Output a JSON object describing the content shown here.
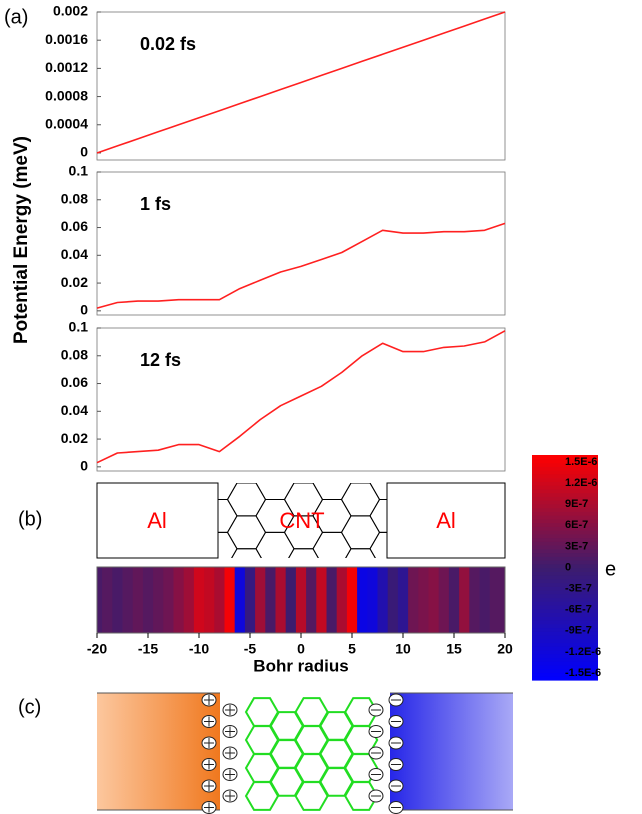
{
  "figure_labels": [
    "(a)",
    "(b)",
    "(c)"
  ],
  "ylabel": "Potential Energy (meV)",
  "chart_data": [
    {
      "type": "line",
      "annotation": "0.02 fs",
      "x": [
        -20,
        -18,
        -16,
        -14,
        -12,
        -10,
        -8,
        -6,
        -4,
        -2,
        0,
        2,
        4,
        6,
        8,
        10,
        12,
        14,
        16,
        18,
        20
      ],
      "series": [
        {
          "color": "#ff2020",
          "values": [
            0,
            0.0001,
            0.0002,
            0.0003,
            0.0004,
            0.0005,
            0.0006,
            0.0007,
            0.0008,
            0.0009,
            0.001,
            0.0011,
            0.0012,
            0.0013,
            0.0014,
            0.0015,
            0.0016,
            0.0017,
            0.0018,
            0.0019,
            0.002
          ]
        }
      ],
      "xlim": [
        -20,
        20
      ],
      "ylim": [
        -0.0001,
        0.002
      ],
      "yticks": [
        0,
        0.0004,
        0.0008,
        0.0012,
        0.0016,
        0.002
      ]
    },
    {
      "type": "line",
      "annotation": "1 fs",
      "x": [
        -20,
        -18,
        -16,
        -14,
        -12,
        -10,
        -8,
        -6,
        -4,
        -2,
        0,
        2,
        4,
        6,
        8,
        10,
        12,
        14,
        16,
        18,
        20
      ],
      "series": [
        {
          "color": "#ff2020",
          "values": [
            0.002,
            0.006,
            0.007,
            0.007,
            0.008,
            0.008,
            0.008,
            0.016,
            0.022,
            0.028,
            0.032,
            0.037,
            0.042,
            0.05,
            0.058,
            0.056,
            0.056,
            0.057,
            0.057,
            0.058,
            0.063
          ]
        }
      ],
      "xlim": [
        -20,
        20
      ],
      "ylim": [
        -0.003,
        0.1
      ],
      "yticks": [
        0,
        0.02,
        0.04,
        0.06,
        0.08,
        0.1
      ]
    },
    {
      "type": "line",
      "annotation": "12 fs",
      "x": [
        -20,
        -18,
        -16,
        -14,
        -12,
        -10,
        -8,
        -6,
        -4,
        -2,
        0,
        2,
        4,
        6,
        8,
        10,
        12,
        14,
        16,
        18,
        20
      ],
      "series": [
        {
          "color": "#ff2020",
          "values": [
            0.003,
            0.01,
            0.011,
            0.012,
            0.016,
            0.016,
            0.011,
            0.022,
            0.034,
            0.044,
            0.051,
            0.058,
            0.068,
            0.08,
            0.089,
            0.083,
            0.083,
            0.086,
            0.087,
            0.09,
            0.098
          ]
        }
      ],
      "xlim": [
        -20,
        20
      ],
      "ylim": [
        -0.003,
        0.1
      ],
      "yticks": [
        0,
        0.02,
        0.04,
        0.06,
        0.08,
        0.1
      ]
    },
    {
      "type": "heatmap",
      "annotations": [
        "Al",
        "CNT",
        "Al"
      ],
      "x": [
        -20,
        -19,
        -18,
        -17,
        -16,
        -15,
        -14,
        -13,
        -12,
        -11,
        -10,
        -9,
        -8,
        -7,
        -6,
        -5,
        -4,
        -3,
        -2,
        -1,
        0,
        1,
        2,
        3,
        4,
        5,
        6,
        7,
        8,
        9,
        10,
        11,
        12,
        13,
        14,
        15,
        16,
        17,
        18,
        19,
        20
      ],
      "values": [
        1e-07,
        2e-07,
        1e-07,
        2e-07,
        3e-07,
        2e-07,
        3e-07,
        4e-07,
        6e-07,
        8e-07,
        1.2e-06,
        1.1e-06,
        9e-07,
        1.5e-06,
        -1.2e-06,
        -2e-07,
        8e-07,
        1e-07,
        9e-07,
        0,
        1e-06,
        2e-07,
        1.1e-06,
        1e-07,
        9e-07,
        1.5e-06,
        -1.3e-06,
        -1.2e-06,
        -7e-07,
        -1e-07,
        -4e-07,
        4e-07,
        5e-07,
        6e-07,
        4e-07,
        1e-07,
        7e-07,
        2e-07,
        1e-07,
        2e-07,
        2e-07
      ],
      "xlim": [
        -20,
        20
      ],
      "xticks": [
        -20,
        -15,
        -10,
        -5,
        0,
        5,
        10,
        15,
        20
      ],
      "xlabel": "Bohr radius",
      "colorbar": {
        "label": "e",
        "lim": [
          -1.6e-06,
          1.6e-06
        ],
        "colors": [
          "#0000ff",
          "#3d1c6e",
          "#ff0000"
        ],
        "ticks": [
          {
            "value": 1.5e-06,
            "label": "1.5E-6"
          },
          {
            "value": 1.2e-06,
            "label": "1.2E-6"
          },
          {
            "value": 9e-07,
            "label": "9E-7"
          },
          {
            "value": 6e-07,
            "label": "6E-7"
          },
          {
            "value": 3e-07,
            "label": "3E-7"
          },
          0,
          {
            "value": -3e-07,
            "label": "-3E-7"
          },
          {
            "value": -6e-07,
            "label": "-6E-7"
          },
          {
            "value": -9e-07,
            "label": "-9E-7"
          },
          {
            "value": -1.2e-06,
            "label": "-1.2E-6"
          },
          {
            "value": -1.5e-06,
            "label": "-1.5E-6"
          }
        ]
      }
    }
  ]
}
